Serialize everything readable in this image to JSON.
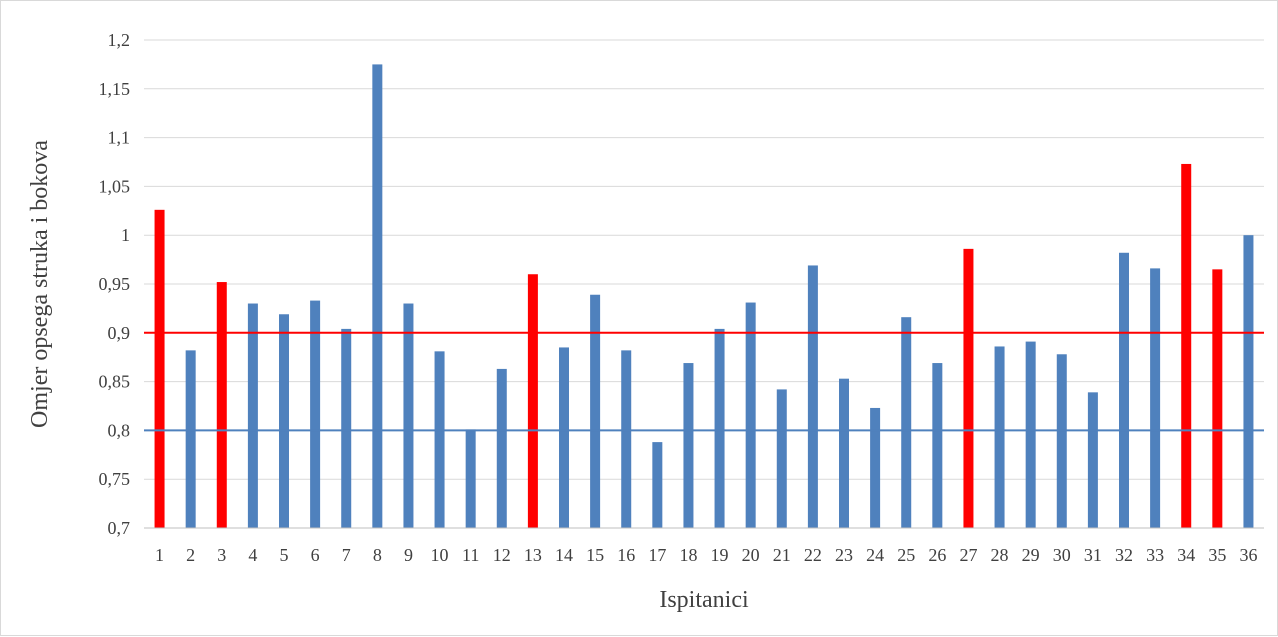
{
  "chart_data": {
    "type": "bar",
    "xlabel": "Ispitanici",
    "ylabel": "Omjer opsega struka i bokova",
    "ylim": [
      0.7,
      1.2
    ],
    "y_ticks": [
      "0,7",
      "0,75",
      "0,8",
      "0,85",
      "0,9",
      "0,95",
      "1",
      "1,05",
      "1,1",
      "1,15",
      "1,2"
    ],
    "y_tick_values": [
      0.7,
      0.75,
      0.8,
      0.85,
      0.9,
      0.95,
      1.0,
      1.05,
      1.1,
      1.15,
      1.2
    ],
    "grid": true,
    "categories": [
      "1",
      "2",
      "3",
      "4",
      "5",
      "6",
      "7",
      "8",
      "9",
      "10",
      "11",
      "12",
      "13",
      "14",
      "15",
      "16",
      "17",
      "18",
      "19",
      "20",
      "21",
      "22",
      "23",
      "24",
      "25",
      "26",
      "27",
      "28",
      "29",
      "30",
      "31",
      "32",
      "33",
      "34",
      "35",
      "36"
    ],
    "values": [
      1.026,
      0.882,
      0.952,
      0.93,
      0.919,
      0.933,
      0.904,
      1.175,
      0.93,
      0.881,
      0.801,
      0.863,
      0.96,
      0.885,
      0.939,
      0.882,
      0.788,
      0.869,
      0.904,
      0.931,
      0.842,
      0.969,
      0.853,
      0.823,
      0.916,
      0.869,
      0.986,
      0.886,
      0.891,
      0.878,
      0.839,
      0.982,
      0.966,
      1.073,
      0.965,
      1.0
    ],
    "highlighted": [
      1,
      3,
      13,
      27,
      34,
      35
    ],
    "colors": {
      "default_bar": "#4f81bd",
      "highlight_bar": "#ff0000",
      "grid": "#d9d9d9",
      "axis": "#bfbfbf"
    },
    "reference_lines": [
      {
        "value": 0.9,
        "color": "#ff0000"
      },
      {
        "value": 0.8,
        "color": "#4f81bd"
      }
    ]
  }
}
